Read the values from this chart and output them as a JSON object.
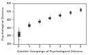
{
  "title": "",
  "xlabel": "Quintile Groupings of Psychological Distress",
  "ylabel": "Psychological Distress",
  "xlim": [
    -0.5,
    6.5
  ],
  "ylim": [
    100,
    600
  ],
  "yticks": [
    100,
    200,
    300,
    400,
    500,
    600
  ],
  "xtick_labels": [
    "0",
    "1",
    "2",
    "3",
    "4",
    "5",
    "6"
  ],
  "background_color": "#ffffff",
  "box_facecolor": "#cccccc",
  "box_edgecolor": "#444444",
  "median_color": "#000000",
  "whisker_color": "#444444",
  "flier_color": "#444444",
  "groups": [
    {
      "x": 0,
      "median": 215,
      "q1": 190,
      "q3": 248,
      "whislo": 160,
      "whishi": 275,
      "fliers": [
        100,
        104,
        108,
        112,
        116,
        120,
        124,
        128,
        132,
        136,
        140,
        144,
        148,
        152,
        155,
        290,
        295,
        300,
        305
      ]
    },
    {
      "x": 1,
      "median": 330,
      "q1": 320,
      "q3": 342,
      "whislo": 308,
      "whishi": 358,
      "fliers": [
        295,
        370
      ]
    },
    {
      "x": 2,
      "median": 378,
      "q1": 370,
      "q3": 388,
      "whislo": 360,
      "whishi": 400,
      "fliers": [
        348,
        412
      ]
    },
    {
      "x": 3,
      "median": 418,
      "q1": 410,
      "q3": 428,
      "whislo": 400,
      "whishi": 440,
      "fliers": [
        388,
        452
      ]
    },
    {
      "x": 4,
      "median": 452,
      "q1": 444,
      "q3": 461,
      "whislo": 434,
      "whishi": 472,
      "fliers": [
        422,
        482
      ]
    },
    {
      "x": 5,
      "median": 486,
      "q1": 478,
      "q3": 495,
      "whislo": 468,
      "whishi": 506,
      "fliers": [
        456,
        516
      ]
    },
    {
      "x": 6,
      "median": 525,
      "q1": 517,
      "q3": 533,
      "whislo": 507,
      "whishi": 544,
      "fliers": [
        496,
        554
      ]
    }
  ],
  "figsize": [
    1.29,
    0.8
  ],
  "dpi": 100,
  "label_fontsize": 3.2,
  "tick_fontsize": 2.8
}
